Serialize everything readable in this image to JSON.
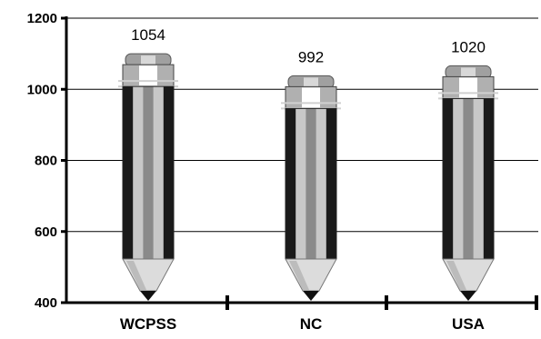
{
  "chart_data": {
    "type": "bar",
    "title": "",
    "xlabel": "",
    "ylabel": "",
    "categories": [
      "WCPSS",
      "NC",
      "USA"
    ],
    "values": [
      1054,
      992,
      1020
    ],
    "data_labels": [
      "1054",
      "992",
      "1020"
    ],
    "ylim": [
      400,
      1200
    ],
    "yticks": [
      {
        "value": 400,
        "label": "400"
      },
      {
        "value": 600,
        "label": "600"
      },
      {
        "value": 800,
        "label": "800"
      },
      {
        "value": 1000,
        "label": "1000"
      },
      {
        "value": 1200,
        "label": "1200"
      }
    ],
    "grid": true,
    "legend": "none",
    "bar_style": "pencil",
    "colors": {
      "pencil_dark": "#1a1a1a",
      "pencil_light": "#c8c8c8",
      "pencil_mid": "#8a8a8a",
      "wood": "#dcdcdc",
      "ferrule": "#b0b0b0",
      "eraser": "#a0a0a0",
      "tip": "#111111"
    }
  }
}
